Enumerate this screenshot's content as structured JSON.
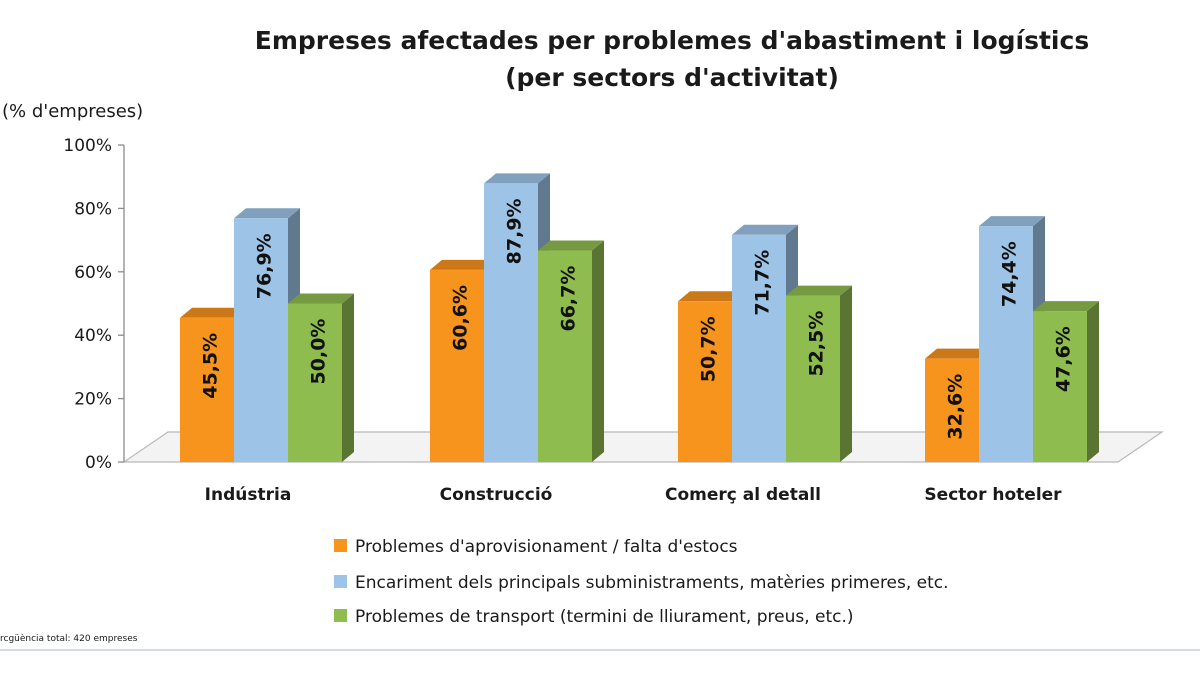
{
  "chart_data": {
    "type": "bar",
    "title_lines": [
      "Empreses afectades per problemes d'abastiment i logístics",
      "(per sectors d'activitat)"
    ],
    "unit_label": "(% d'empreses)",
    "categories": [
      "Indústria",
      "Construcció",
      "Comerç al detall",
      "Sector hoteler"
    ],
    "yticks": [
      "0%",
      "20%",
      "40%",
      "60%",
      "80%",
      "100%"
    ],
    "ylim": [
      0,
      100
    ],
    "series": [
      {
        "name": "Problemes d'aprovisionament / falta d'estocs",
        "values": [
          45.5,
          60.6,
          50.7,
          32.6
        ],
        "labels": [
          "45,5%",
          "60,6%",
          "50,7%",
          "32,6%"
        ],
        "color": "#f7941d"
      },
      {
        "name": "Encariment dels principals subministraments, matèries primeres, etc.",
        "values": [
          76.9,
          87.9,
          71.7,
          74.4
        ],
        "labels": [
          "76,9%",
          "87,9%",
          "71,7%",
          "74,4%"
        ],
        "color": "#9dc3e6"
      },
      {
        "name": "Problemes de transport (termini de lliurament, preus, etc.)",
        "values": [
          50.0,
          66.7,
          52.5,
          47.6
        ],
        "labels": [
          "50,0%",
          "66,7%",
          "52,5%",
          "47,6%"
        ],
        "color": "#8fbc4f"
      }
    ],
    "legend_position": "bottom",
    "source_note": "rcgüència total: 420 empreses"
  }
}
